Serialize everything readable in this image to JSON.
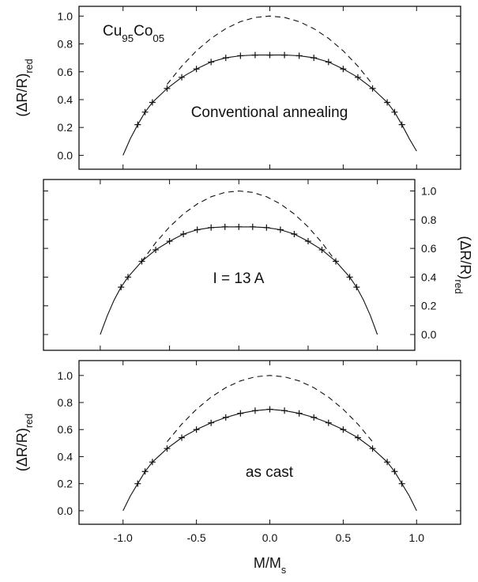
{
  "chart_data": [
    {
      "type": "line",
      "annotations": [
        [
          "Cu",
          "95",
          "Co",
          "05"
        ],
        [
          "Conventional annealing"
        ]
      ],
      "ylabel": [
        "(ΔR/R)",
        "red"
      ],
      "y_axis_side": "left",
      "x": [
        -1,
        -0.95,
        -0.9,
        -0.85,
        -0.8,
        -0.7,
        -0.6,
        -0.5,
        -0.4,
        -0.3,
        -0.2,
        -0.1,
        0,
        0.1,
        0.2,
        0.3,
        0.4,
        0.5,
        0.6,
        0.7,
        0.8,
        0.85,
        0.9,
        0.95,
        1
      ],
      "series": [
        {
          "color": "#111111",
          "line_style": "solid",
          "values": [
            0,
            0.12,
            0.22,
            0.31,
            0.38,
            0.48,
            0.56,
            0.62,
            0.67,
            0.7,
            0.715,
            0.72,
            0.72,
            0.72,
            0.715,
            0.7,
            0.67,
            0.62,
            0.56,
            0.48,
            0.38,
            0.31,
            0.22,
            0.12,
            0.03
          ]
        },
        {
          "color": "#111111",
          "line_style": "dashed",
          "values": [
            null,
            null,
            null,
            null,
            null,
            0.51,
            0.64,
            0.75,
            0.84,
            0.91,
            0.96,
            0.99,
            1,
            0.99,
            0.96,
            0.91,
            0.84,
            0.75,
            0.64,
            0.51,
            null,
            null,
            null,
            null,
            null
          ]
        },
        {
          "color": "#111111",
          "marker": "+",
          "values": [
            null,
            null,
            0.22,
            0.31,
            0.38,
            0.48,
            0.56,
            0.62,
            0.67,
            0.7,
            0.715,
            0.72,
            0.72,
            0.72,
            0.715,
            0.7,
            0.67,
            0.62,
            0.56,
            0.48,
            0.38,
            0.31,
            0.22,
            null,
            null
          ]
        }
      ],
      "xlim": [
        -1.3,
        1.3
      ],
      "xticks": [
        -1,
        -0.5,
        0,
        0.5,
        1
      ],
      "ylim": [
        -0.1,
        1.07
      ],
      "yticks": [
        {
          "value": 0,
          "label": "0.0"
        },
        0.2,
        0.4,
        0.6,
        0.8,
        {
          "value": 1,
          "label": "1.0"
        }
      ]
    },
    {
      "type": "line",
      "annotations": [
        [
          "I = 13 A"
        ]
      ],
      "ylabel": [
        "(ΔR/R)",
        "red"
      ],
      "y_axis_side": "right",
      "x": [
        -1,
        -0.95,
        -0.9,
        -0.85,
        -0.8,
        -0.7,
        -0.6,
        -0.5,
        -0.4,
        -0.3,
        -0.2,
        -0.1,
        0,
        0.1,
        0.2,
        0.3,
        0.4,
        0.5,
        0.6,
        0.7,
        0.8,
        0.85,
        0.9,
        0.95,
        1
      ],
      "series": [
        {
          "color": "#111111",
          "line_style": "solid",
          "values": [
            0,
            0.13,
            0.24,
            0.33,
            0.4,
            0.51,
            0.59,
            0.65,
            0.7,
            0.73,
            0.745,
            0.75,
            0.75,
            0.75,
            0.745,
            0.73,
            0.7,
            0.65,
            0.59,
            0.51,
            0.4,
            0.33,
            0.24,
            0.13,
            0
          ]
        },
        {
          "color": "#111111",
          "line_style": "dashed",
          "values": [
            null,
            null,
            null,
            null,
            null,
            0.51,
            0.64,
            0.75,
            0.84,
            0.91,
            0.96,
            0.99,
            1,
            0.99,
            0.96,
            0.91,
            0.84,
            0.75,
            0.64,
            0.51,
            null,
            null,
            null,
            null,
            null
          ]
        },
        {
          "color": "#111111",
          "marker": "+",
          "values": [
            null,
            null,
            null,
            0.33,
            0.4,
            0.51,
            0.59,
            0.65,
            0.7,
            0.73,
            0.745,
            0.75,
            0.75,
            0.75,
            0.745,
            0.73,
            0.7,
            0.65,
            0.59,
            0.51,
            0.4,
            0.33,
            null,
            null,
            null
          ]
        }
      ],
      "xlim": [
        -1.41,
        1.27
      ],
      "xticks": [
        -1,
        -0.5,
        0,
        0.5,
        1
      ],
      "ylim": [
        -0.11,
        1.08
      ],
      "yticks": [
        {
          "value": 0,
          "label": "0.0"
        },
        0.2,
        0.4,
        0.6,
        0.8,
        {
          "value": 1,
          "label": "1.0"
        }
      ]
    },
    {
      "type": "line",
      "annotations": [
        [
          "as cast"
        ]
      ],
      "ylabel": [
        "(ΔR/R)",
        "red"
      ],
      "y_axis_side": "left",
      "xlabel": [
        "M/M",
        "s"
      ],
      "x": [
        -1,
        -0.95,
        -0.9,
        -0.85,
        -0.8,
        -0.7,
        -0.6,
        -0.5,
        -0.4,
        -0.3,
        -0.2,
        -0.1,
        0,
        0.1,
        0.2,
        0.3,
        0.4,
        0.5,
        0.6,
        0.7,
        0.8,
        0.85,
        0.9,
        0.95,
        1
      ],
      "series": [
        {
          "color": "#111111",
          "line_style": "solid",
          "values": [
            0,
            0.11,
            0.2,
            0.29,
            0.36,
            0.46,
            0.54,
            0.6,
            0.65,
            0.69,
            0.72,
            0.74,
            0.75,
            0.74,
            0.72,
            0.69,
            0.65,
            0.6,
            0.54,
            0.46,
            0.36,
            0.29,
            0.2,
            0.11,
            0
          ]
        },
        {
          "color": "#111111",
          "line_style": "dashed",
          "values": [
            null,
            null,
            null,
            null,
            null,
            0.51,
            0.64,
            0.75,
            0.84,
            0.91,
            0.96,
            0.99,
            1,
            0.99,
            0.96,
            0.91,
            0.84,
            0.75,
            0.64,
            0.51,
            null,
            null,
            null,
            null,
            null
          ]
        },
        {
          "color": "#111111",
          "marker": "+",
          "values": [
            null,
            null,
            0.2,
            0.29,
            0.36,
            0.46,
            0.54,
            0.6,
            0.65,
            0.69,
            0.72,
            0.74,
            0.75,
            0.74,
            0.72,
            0.69,
            0.65,
            0.6,
            0.54,
            0.46,
            0.36,
            0.29,
            0.2,
            null,
            null
          ]
        }
      ],
      "xlim": [
        -1.3,
        1.3
      ],
      "xticks": [
        {
          "value": -1,
          "label": "-1.0"
        },
        -0.5,
        {
          "value": 0,
          "label": "0.0"
        },
        0.5,
        {
          "value": 1,
          "label": "1.0"
        }
      ],
      "ylim": [
        -0.1,
        1.11
      ],
      "yticks": [
        {
          "value": 0,
          "label": "0.0"
        },
        0.2,
        0.4,
        0.6,
        0.8,
        {
          "value": 1,
          "label": "1.0"
        }
      ]
    }
  ]
}
